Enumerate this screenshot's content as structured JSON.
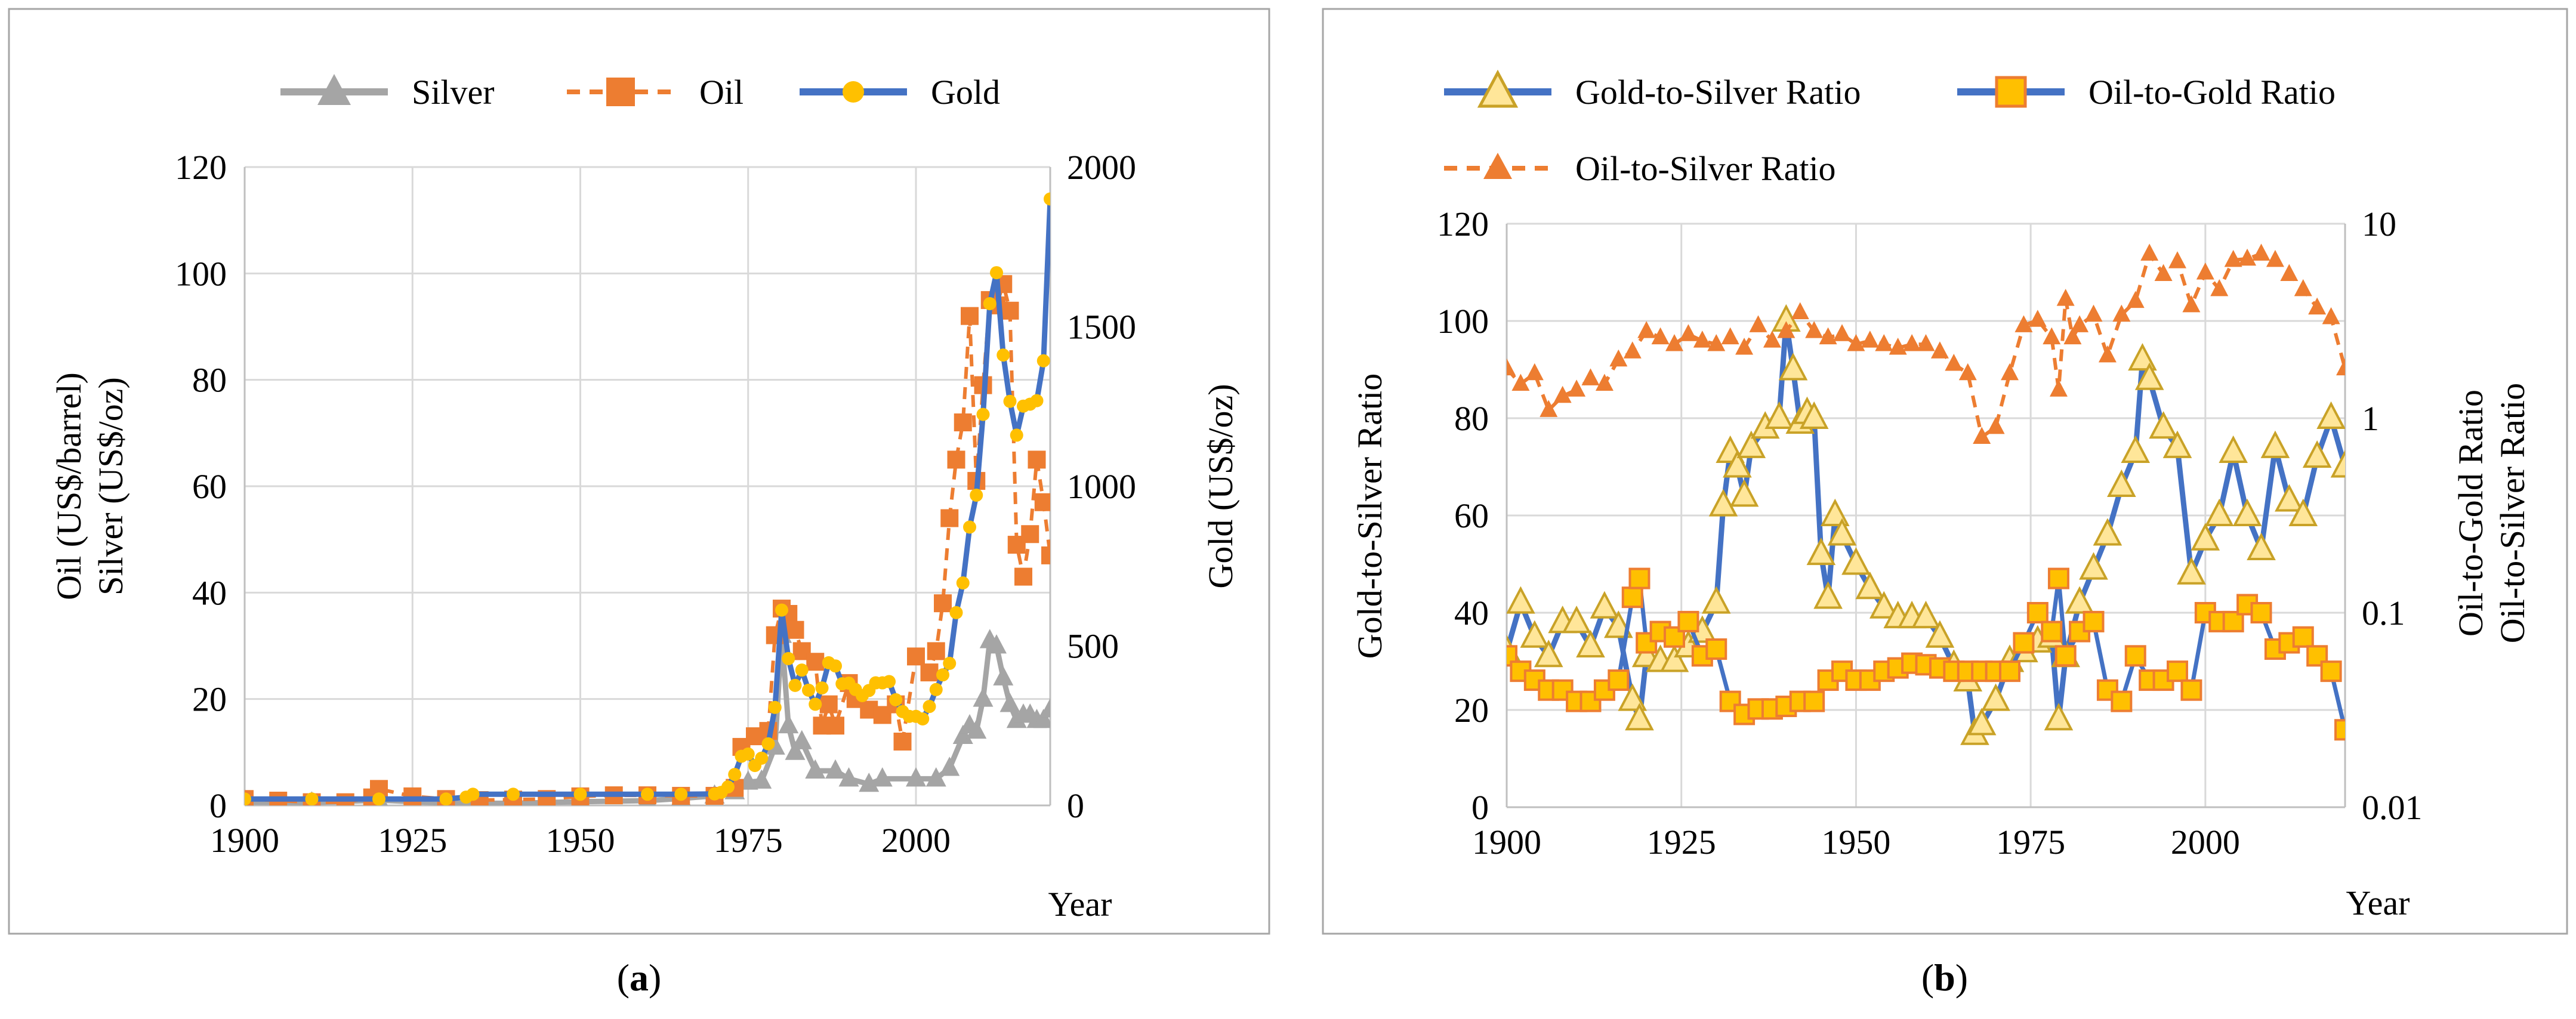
{
  "colors": {
    "gold": "#4472C4",
    "gold_marker": "#FFC000",
    "oil": "#ED7D31",
    "silver": "#A5A5A5",
    "grid": "#D9D9D9",
    "border": "#A6A6A6"
  },
  "panel_a": {
    "caption": {
      "open": "(",
      "letter": "a",
      "close": ")"
    },
    "legend": [
      "Silver",
      "Oil",
      "Gold"
    ],
    "left_axis_labels": [
      "Oil (US$/barrel)",
      "Silver (US$/oz)"
    ],
    "right_axis_label": "Gold (US$/oz)",
    "x_label": "Year"
  },
  "panel_b": {
    "caption": {
      "open": "(",
      "letter": "b",
      "close": ")"
    },
    "legend": [
      "Gold-to-Silver Ratio",
      "Oil-to-Gold Ratio",
      "Oil-to-Silver Ratio"
    ],
    "left_axis_label": "Gold-to-Silver Ratio",
    "right_axis_labels": [
      "Oil-to-Gold Ratio",
      "Oil-to-Silver Ratio"
    ],
    "x_label": "Year"
  },
  "chart_data": [
    {
      "id": "a",
      "type": "line",
      "xlabel": "Year",
      "x_ticks": [
        1900,
        1925,
        1950,
        1975,
        2000
      ],
      "xlim": [
        1900,
        2020
      ],
      "y_left": {
        "label": "Oil (US$/barrel) / Silver (US$/oz)",
        "ylim": [
          0,
          120
        ],
        "ticks": [
          0,
          20,
          40,
          60,
          80,
          100,
          120
        ]
      },
      "y_right": {
        "label": "Gold (US$/oz)",
        "ylim": [
          0,
          2000
        ],
        "ticks": [
          0,
          500,
          1000,
          1500,
          2000
        ]
      },
      "series": [
        {
          "name": "Silver",
          "axis": "left",
          "style": "solid",
          "marker": "triangle",
          "x": [
            1900,
            1910,
            1920,
            1930,
            1940,
            1950,
            1960,
            1965,
            1970,
            1973,
            1975,
            1977,
            1979,
            1980,
            1981,
            1982,
            1983,
            1985,
            1988,
            1990,
            1993,
            1995,
            2000,
            2003,
            2005,
            2007,
            2008,
            2009,
            2010,
            2011,
            2012,
            2013,
            2014,
            2015,
            2016,
            2017,
            2018,
            2019,
            2020
          ],
          "values": [
            0.6,
            0.5,
            1.0,
            0.4,
            0.4,
            0.7,
            0.9,
            1.3,
            1.8,
            2.6,
            4.4,
            4.6,
            11,
            32,
            15,
            10,
            12,
            6.5,
            6.5,
            5,
            4,
            5,
            5,
            5,
            7,
            13,
            15,
            14,
            20,
            31,
            30,
            24,
            19,
            16,
            17,
            17,
            16,
            16,
            18
          ]
        },
        {
          "name": "Oil",
          "axis": "left",
          "style": "dashed",
          "marker": "square",
          "x": [
            1900,
            1905,
            1910,
            1915,
            1919,
            1920,
            1925,
            1930,
            1935,
            1940,
            1945,
            1950,
            1955,
            1960,
            1965,
            1970,
            1973,
            1974,
            1976,
            1978,
            1979,
            1980,
            1981,
            1982,
            1983,
            1985,
            1986,
            1987,
            1988,
            1990,
            1991,
            1993,
            1995,
            1997,
            1998,
            2000,
            2002,
            2003,
            2004,
            2005,
            2006,
            2007,
            2008,
            2009,
            2010,
            2011,
            2012,
            2013,
            2014,
            2015,
            2016,
            2017,
            2018,
            2019,
            2020
          ],
          "values": [
            1.2,
            0.9,
            0.6,
            0.6,
            1.5,
            3.1,
            1.7,
            1.2,
            1,
            1.1,
            1.2,
            1.7,
            1.9,
            1.9,
            1.8,
            1.8,
            3.3,
            11,
            13,
            14,
            32,
            37,
            36,
            33,
            29,
            27,
            15,
            19,
            15,
            23,
            20,
            18,
            17,
            19,
            12,
            28,
            25,
            29,
            38,
            54,
            65,
            72,
            92,
            61,
            79,
            95,
            94,
            98,
            93,
            49,
            43,
            51,
            65,
            57,
            47
          ]
        },
        {
          "name": "Gold",
          "axis": "right",
          "style": "solid",
          "marker": "circle",
          "x": [
            1900,
            1910,
            1920,
            1930,
            1933,
            1934,
            1940,
            1950,
            1960,
            1965,
            1970,
            1971,
            1972,
            1973,
            1974,
            1975,
            1976,
            1977,
            1978,
            1979,
            1980,
            1981,
            1982,
            1983,
            1984,
            1985,
            1986,
            1987,
            1988,
            1989,
            1990,
            1991,
            1992,
            1993,
            1994,
            1995,
            1996,
            1997,
            1998,
            1999,
            2000,
            2001,
            2002,
            2003,
            2004,
            2005,
            2006,
            2007,
            2008,
            2009,
            2010,
            2011,
            2012,
            2013,
            2014,
            2015,
            2016,
            2017,
            2018,
            2019,
            2020
          ],
          "values": [
            20,
            20,
            20,
            20,
            26,
            35,
            35,
            35,
            35,
            35,
            36,
            41,
            58,
            97,
            154,
            161,
            125,
            148,
            193,
            307,
            612,
            460,
            376,
            424,
            361,
            317,
            368,
            447,
            437,
            381,
            383,
            363,
            344,
            360,
            384,
            384,
            388,
            331,
            294,
            279,
            279,
            271,
            310,
            363,
            409,
            445,
            604,
            697,
            872,
            972,
            1225,
            1572,
            1669,
            1411,
            1266,
            1160,
            1251,
            1257,
            1268,
            1393,
            1900
          ]
        }
      ]
    },
    {
      "id": "b",
      "type": "line",
      "xlabel": "Year",
      "x_ticks": [
        1900,
        1925,
        1950,
        1975,
        2000
      ],
      "xlim": [
        1900,
        2020
      ],
      "y_left": {
        "label": "Gold-to-Silver Ratio",
        "ylim": [
          0,
          120
        ],
        "ticks": [
          0,
          20,
          40,
          60,
          80,
          100,
          120
        ]
      },
      "y_right": {
        "label": "Oil-to-Gold Ratio / Oil-to-Silver Ratio",
        "scale": "log",
        "ylim": [
          0.01,
          10
        ],
        "ticks": [
          0.01,
          0.1,
          1,
          10
        ]
      },
      "series": [
        {
          "name": "Gold-to-Silver Ratio",
          "axis": "left",
          "style": "solid",
          "marker": "triangle",
          "x": [
            1900,
            1902,
            1904,
            1906,
            1908,
            1910,
            1912,
            1914,
            1916,
            1918,
            1919,
            1920,
            1922,
            1924,
            1926,
            1928,
            1930,
            1931,
            1932,
            1933,
            1934,
            1935,
            1937,
            1939,
            1940,
            1941,
            1942,
            1943,
            1944,
            1945,
            1946,
            1947,
            1948,
            1950,
            1952,
            1954,
            1956,
            1958,
            1960,
            1962,
            1964,
            1966,
            1967,
            1968,
            1970,
            1972,
            1974,
            1976,
            1978,
            1979,
            1980,
            1982,
            1984,
            1986,
            1988,
            1990,
            1991,
            1992,
            1994,
            1996,
            1998,
            2000,
            2002,
            2004,
            2006,
            2008,
            2010,
            2012,
            2014,
            2016,
            2018,
            2020
          ],
          "values": [
            32,
            42,
            35,
            31,
            38,
            38,
            33,
            41,
            37,
            22,
            18,
            31,
            30,
            30,
            33,
            36,
            42,
            62,
            73,
            70,
            64,
            74,
            78,
            80,
            100,
            90,
            79,
            81,
            80,
            52,
            43,
            60,
            56,
            50,
            45,
            41,
            39,
            39,
            39,
            35,
            29,
            26,
            15,
            17,
            22,
            30,
            32,
            34,
            35,
            18,
            31,
            42,
            49,
            56,
            66,
            73,
            92,
            88,
            78,
            74,
            48,
            55,
            60,
            73,
            60,
            53,
            74,
            63,
            60,
            72,
            80,
            70
          ]
        },
        {
          "name": "Oil-to-Gold Ratio",
          "axis": "right",
          "x": [
            1900,
            1902,
            1904,
            1906,
            1908,
            1910,
            1912,
            1914,
            1916,
            1918,
            1919,
            1920,
            1922,
            1924,
            1926,
            1928,
            1930,
            1932,
            1934,
            1936,
            1938,
            1940,
            1942,
            1944,
            1946,
            1948,
            1950,
            1952,
            1954,
            1956,
            1958,
            1960,
            1962,
            1964,
            1966,
            1968,
            1970,
            1972,
            1974,
            1976,
            1978,
            1979,
            1980,
            1982,
            1984,
            1986,
            1988,
            1990,
            1992,
            1994,
            1996,
            1998,
            2000,
            2002,
            2004,
            2006,
            2008,
            2010,
            2012,
            2014,
            2016,
            2018,
            2020
          ],
          "values": [
            0.06,
            0.05,
            0.045,
            0.04,
            0.04,
            0.035,
            0.035,
            0.04,
            0.045,
            0.12,
            0.15,
            0.07,
            0.08,
            0.075,
            0.09,
            0.06,
            0.065,
            0.035,
            0.03,
            0.032,
            0.032,
            0.033,
            0.035,
            0.035,
            0.045,
            0.05,
            0.045,
            0.045,
            0.05,
            0.052,
            0.055,
            0.054,
            0.052,
            0.05,
            0.05,
            0.05,
            0.05,
            0.05,
            0.07,
            0.1,
            0.08,
            0.15,
            0.06,
            0.08,
            0.09,
            0.04,
            0.035,
            0.06,
            0.045,
            0.045,
            0.05,
            0.04,
            0.1,
            0.09,
            0.09,
            0.11,
            0.1,
            0.065,
            0.07,
            0.075,
            0.06,
            0.05,
            0.025
          ]
        },
        {
          "name": "Oil-to-Silver Ratio",
          "axis": "right",
          "style": "dashed",
          "marker": "triangle",
          "x": [
            1900,
            1902,
            1904,
            1906,
            1908,
            1910,
            1912,
            1914,
            1916,
            1918,
            1920,
            1922,
            1924,
            1926,
            1928,
            1930,
            1932,
            1934,
            1936,
            1938,
            1940,
            1942,
            1944,
            1946,
            1948,
            1950,
            1952,
            1954,
            1956,
            1958,
            1960,
            1962,
            1964,
            1966,
            1968,
            1970,
            1972,
            1974,
            1976,
            1978,
            1979,
            1980,
            1981,
            1982,
            1984,
            1986,
            1988,
            1990,
            1992,
            1994,
            1996,
            1998,
            2000,
            2002,
            2004,
            2006,
            2008,
            2010,
            2012,
            2014,
            2016,
            2018,
            2020
          ],
          "values": [
            1.8,
            1.5,
            1.7,
            1.1,
            1.3,
            1.4,
            1.6,
            1.5,
            2.0,
            2.2,
            2.8,
            2.6,
            2.4,
            2.7,
            2.5,
            2.4,
            2.6,
            2.3,
            3.0,
            2.5,
            2.8,
            3.5,
            2.8,
            2.6,
            2.7,
            2.4,
            2.5,
            2.4,
            2.3,
            2.4,
            2.4,
            2.2,
            1.9,
            1.7,
            0.8,
            0.9,
            1.7,
            3.0,
            3.2,
            2.6,
            1.4,
            4.1,
            2.6,
            3.0,
            3.4,
            2.1,
            3.4,
            4.0,
            7.0,
            5.5,
            6.4,
            3.8,
            5.6,
            4.6,
            6.5,
            6.6,
            7.0,
            6.5,
            5.5,
            4.6,
            3.7,
            3.3,
            1.8
          ]
        }
      ]
    }
  ]
}
